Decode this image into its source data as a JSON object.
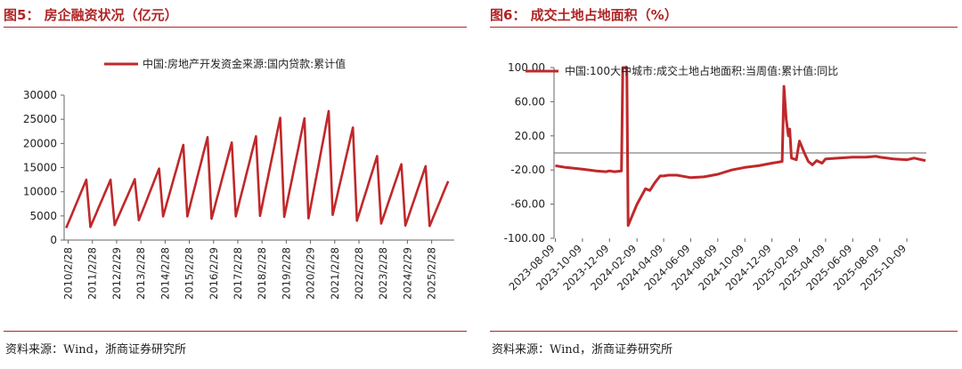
{
  "colors": {
    "accent": "#b02525",
    "series": "#c0282a"
  },
  "left": {
    "title": "图5：  房企融资状况（亿元）",
    "source": "资料来源：Wind，浙商证券研究所",
    "chart_data": {
      "type": "line",
      "title": "",
      "legend": [
        "中国:房地产开发资金来源:国内贷款:累计值"
      ],
      "legend_position": "top",
      "xlabel": "",
      "ylabel": "",
      "ylim": [
        0,
        30000
      ],
      "yticks": [
        0,
        5000,
        10000,
        15000,
        20000,
        25000,
        30000
      ],
      "xticks": [
        "2010/2/28",
        "2011/2/28",
        "2012/2/29",
        "2013/2/28",
        "2014/2/28",
        "2015/2/28",
        "2016/2/29",
        "2017/2/28",
        "2018/2/28",
        "2019/2/28",
        "2020/2/29",
        "2021/2/28",
        "2022/2/28",
        "2023/2/28",
        "2024/2/29",
        "2025/2/28"
      ],
      "grid": false,
      "series": [
        {
          "name": "中国:房地产开发资金来源:国内贷款:累计值",
          "year_start": [
            2500,
            2700,
            3100,
            4100,
            4900,
            4900,
            4400,
            4900,
            5000,
            4800,
            4500,
            5200,
            4000,
            3400,
            3000,
            2900
          ],
          "year_end": [
            12500,
            12500,
            12600,
            14800,
            19700,
            21300,
            20200,
            21500,
            25300,
            25200,
            26700,
            23300,
            17400,
            15700,
            15300
          ],
          "latest": 12200
        }
      ]
    }
  },
  "right": {
    "title": "图6：  成交土地占地面积（%）",
    "source": "资料来源：Wind，浙商证券研究所",
    "chart_data": {
      "type": "line",
      "title": "",
      "legend": [
        "中国:100大中城市:成交土地占地面积:当周值:累计值:同比"
      ],
      "legend_position": "top",
      "xlabel": "",
      "ylabel": "",
      "ylim": [
        -100,
        100
      ],
      "yticks": [
        "100.00",
        "60.00",
        "20.00",
        "-20.00",
        "-60.00",
        "-100.00"
      ],
      "xticks": [
        "2023-08-09",
        "2023-10-09",
        "2023-12-09",
        "2024-02-09",
        "2024-04-09",
        "2024-06-09",
        "2024-08-09",
        "2024-10-09",
        "2024-12-09",
        "2025-02-09",
        "2025-04-09",
        "2025-06-09",
        "2025-08-09",
        "2025-10-09"
      ],
      "grid": false,
      "series": [
        {
          "name": "中国:100大中城市:成交土地占地面积:当周值:累计值:同比",
          "points": [
            [
              "2023-08-09",
              -15
            ],
            [
              "2023-09-01",
              -17
            ],
            [
              "2023-10-09",
              -19
            ],
            [
              "2023-11-09",
              -21
            ],
            [
              "2023-12-01",
              -22
            ],
            [
              "2023-12-09",
              -21
            ],
            [
              "2023-12-20",
              -22
            ],
            [
              "2024-01-05",
              -21
            ],
            [
              "2024-01-08",
              100
            ],
            [
              "2024-01-17",
              100
            ],
            [
              "2024-01-20",
              -85
            ],
            [
              "2024-02-09",
              -60
            ],
            [
              "2024-02-28",
              -42
            ],
            [
              "2024-03-09",
              -44
            ],
            [
              "2024-03-20",
              -35
            ],
            [
              "2024-04-01",
              -27
            ],
            [
              "2024-04-09",
              -27
            ],
            [
              "2024-04-20",
              -26
            ],
            [
              "2024-05-09",
              -26
            ],
            [
              "2024-06-09",
              -29
            ],
            [
              "2024-07-09",
              -28
            ],
            [
              "2024-08-09",
              -25
            ],
            [
              "2024-09-09",
              -20
            ],
            [
              "2024-10-09",
              -17
            ],
            [
              "2024-11-09",
              -15
            ],
            [
              "2024-12-09",
              -12
            ],
            [
              "2024-12-20",
              -11
            ],
            [
              "2025-01-01",
              -10
            ],
            [
              "2025-01-05",
              78
            ],
            [
              "2025-01-10",
              40
            ],
            [
              "2025-01-15",
              20
            ],
            [
              "2025-01-18",
              28
            ],
            [
              "2025-01-22",
              -6
            ],
            [
              "2025-02-02",
              -8
            ],
            [
              "2025-02-09",
              14
            ],
            [
              "2025-02-20",
              0
            ],
            [
              "2025-03-01",
              -10
            ],
            [
              "2025-03-10",
              -14
            ],
            [
              "2025-03-20",
              -9
            ],
            [
              "2025-04-01",
              -12
            ],
            [
              "2025-04-09",
              -7
            ],
            [
              "2025-05-09",
              -6
            ],
            [
              "2025-06-09",
              -5
            ],
            [
              "2025-07-09",
              -5
            ],
            [
              "2025-08-01",
              -4
            ],
            [
              "2025-08-09",
              -5
            ],
            [
              "2025-09-09",
              -7
            ],
            [
              "2025-10-09",
              -8
            ],
            [
              "2025-10-25",
              -6
            ],
            [
              "2025-11-20",
              -9
            ]
          ]
        }
      ],
      "reference_line": 0
    }
  }
}
